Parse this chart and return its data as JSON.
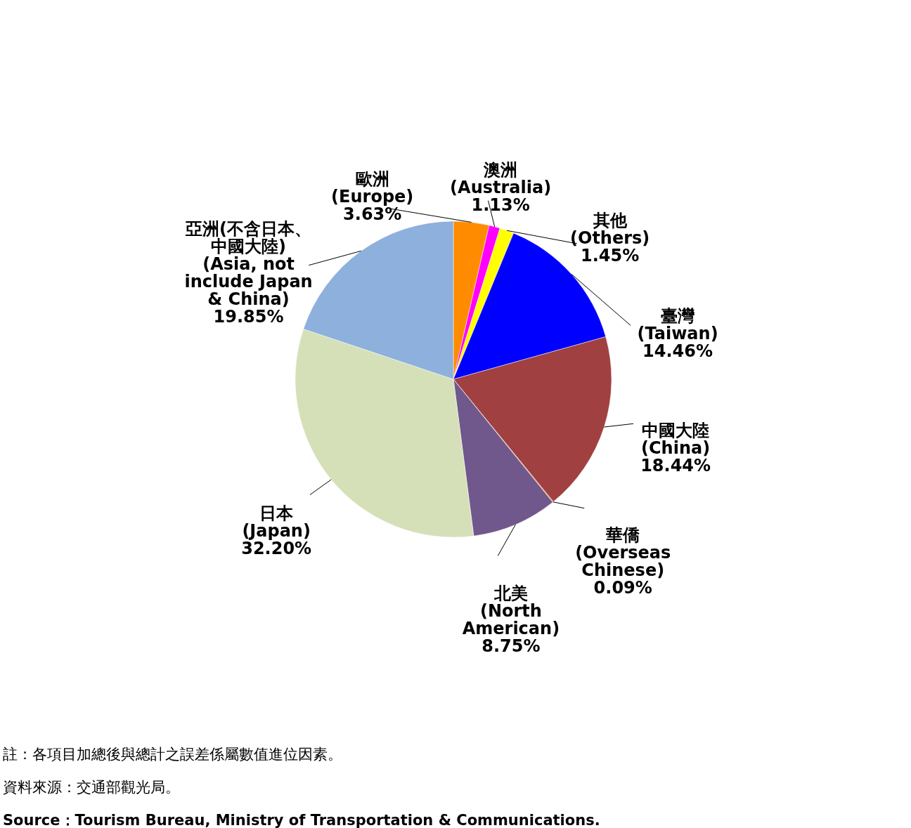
{
  "chart_data": {
    "type": "pie",
    "categories": [
      "歐洲\n(Europe)",
      "澳洲\n(Australia)",
      "其他\n(Others)",
      "臺灣\n(Taiwan)",
      "中國大陸\n(China)",
      "華僑\n(Overseas\nChinese)",
      "北美\n(North\nAmerican)",
      "日本\n(Japan)",
      "亞洲(不含日本、中國大陸)\n(Asia, not\ninclude Japan\n& China)"
    ],
    "values": [
      3.63,
      1.13,
      1.45,
      14.46,
      18.44,
      0.09,
      8.75,
      32.2,
      19.85
    ],
    "value_labels": [
      "3.63%",
      "1.13%",
      "1.45%",
      "14.46%",
      "18.44%",
      "0.09%",
      "8.75%",
      "32.20%",
      "19.85%"
    ],
    "colors": [
      "#ff8c00",
      "#ff00ff",
      "#ffff00",
      "#0000ff",
      "#a04040",
      "#e07020",
      "#70588c",
      "#d6e0b8",
      "#8db0dc"
    ],
    "annotations": [
      "註：各項目加總後與總計之誤差係屬數值進位因素。",
      "資料來源：交通部觀光局。",
      "Source：Tourism Bureau, Ministry of Transportation & Communications."
    ],
    "legend": false
  }
}
